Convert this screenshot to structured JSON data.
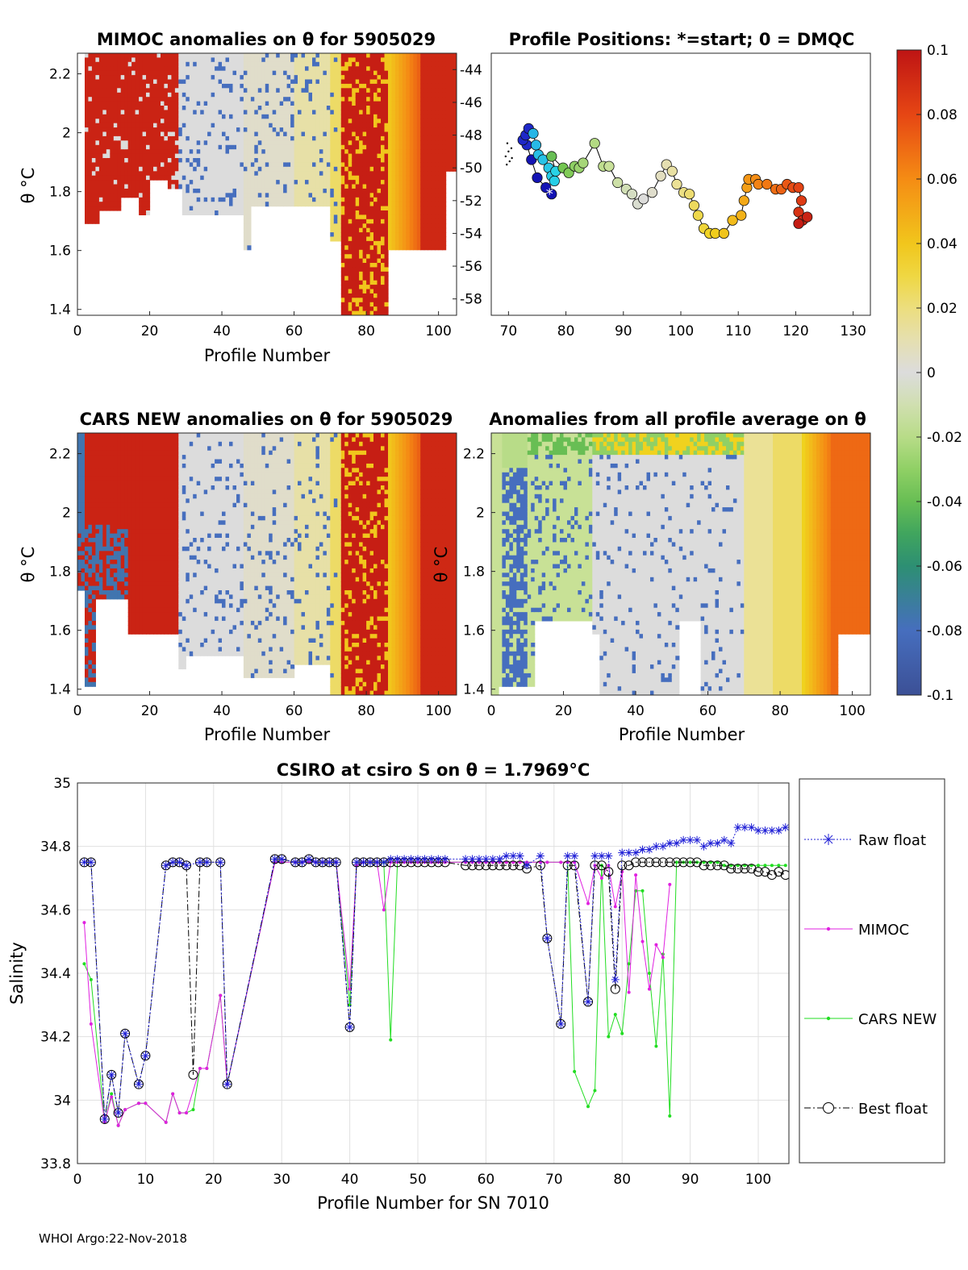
{
  "footer": "WHOI Argo:22-Nov-2018",
  "colors": {
    "raw": "#1f1fd6",
    "mimoc": "#e020e0",
    "cars": "#22dd22",
    "best": "#000000"
  },
  "panels": {
    "mimoc": {
      "title": "MIMOC anomalies on θ  for 5905029",
      "xlabel": "Profile Number",
      "ylabel": "θ °C",
      "xlim": [
        0,
        105
      ],
      "ylim": [
        1.38,
        2.27
      ],
      "xticks": [
        "0",
        "20",
        "40",
        "60",
        "80",
        "100"
      ],
      "yticks": [
        "1.4",
        "1.6",
        "1.8",
        "2",
        "2.2"
      ]
    },
    "positions": {
      "title": "Profile Positions: *=start; 0 = DMQC",
      "xlim": [
        67,
        133
      ],
      "ylim": [
        -59,
        -43
      ],
      "xticks": [
        "70",
        "80",
        "90",
        "100",
        "110",
        "120",
        "130"
      ],
      "yticks": [
        "-44",
        "-46",
        "-48",
        "-50",
        "-52",
        "-54",
        "-56",
        "-58"
      ]
    },
    "cars": {
      "title": "CARS NEW anomalies on θ for 5905029",
      "xlabel": "Profile Number",
      "ylabel": "θ °C",
      "xlim": [
        0,
        105
      ],
      "ylim": [
        1.38,
        2.27
      ],
      "xticks": [
        "0",
        "20",
        "40",
        "60",
        "80",
        "100"
      ],
      "yticks": [
        "1.4",
        "1.6",
        "1.8",
        "2",
        "2.2"
      ]
    },
    "average": {
      "title": "Anomalies from all profile average on θ",
      "xlabel": "Profile Number",
      "ylabel": "θ °C",
      "xlim": [
        0,
        105
      ],
      "ylim": [
        1.38,
        2.27
      ],
      "xticks": [
        "0",
        "20",
        "40",
        "60",
        "80",
        "100"
      ],
      "yticks": [
        "1.4",
        "1.6",
        "1.8",
        "2",
        "2.2"
      ]
    },
    "colorbar": {
      "ticks": [
        "0.1",
        "0.08",
        "0.06",
        "0.04",
        "0.02",
        "0",
        "-0.02",
        "-0.04",
        "-0.06",
        "-0.08",
        "-0.1"
      ],
      "range": [
        -0.1,
        0.1
      ]
    }
  },
  "chart_data": [
    {
      "type": "line",
      "title": "CSIRO at csiro S on θ = 1.7969°C",
      "xlabel": "Profile Number for SN 7010",
      "ylabel": "Salinity",
      "xlim": [
        0,
        104.5
      ],
      "ylim": [
        33.8,
        35
      ],
      "xticks": [
        "0",
        "10",
        "20",
        "30",
        "40",
        "50",
        "60",
        "70",
        "80",
        "90",
        "100"
      ],
      "yticks": [
        "33.8",
        "34",
        "34.2",
        "34.4",
        "34.6",
        "34.8",
        "35"
      ],
      "legend": [
        "Raw float",
        "MIMOC",
        "CARS NEW",
        "Best float"
      ],
      "series": [
        {
          "name": "Raw float",
          "x": [
            1,
            2,
            4,
            5,
            6,
            7,
            9,
            10,
            13,
            14,
            15,
            16,
            18,
            19,
            21,
            22,
            29,
            30,
            32,
            33,
            34,
            35,
            36,
            37,
            38,
            40,
            41,
            42,
            43,
            44,
            45,
            46,
            47,
            48,
            49,
            50,
            51,
            52,
            53,
            54,
            57,
            58,
            59,
            60,
            61,
            62,
            63,
            64,
            65,
            66,
            68,
            69,
            71,
            72,
            73,
            75,
            76,
            77,
            78,
            79,
            80,
            81,
            82,
            83,
            84,
            85,
            86,
            87,
            88,
            89,
            90,
            91,
            92,
            93,
            94,
            95,
            96,
            97,
            98,
            99,
            100,
            101,
            102,
            103,
            104
          ],
          "y": [
            34.75,
            34.75,
            33.94,
            34.08,
            33.96,
            34.21,
            34.05,
            34.14,
            34.74,
            34.75,
            34.75,
            34.74,
            34.75,
            34.75,
            34.75,
            34.05,
            34.76,
            34.76,
            34.75,
            34.75,
            34.76,
            34.75,
            34.75,
            34.75,
            34.75,
            34.23,
            34.75,
            34.75,
            34.75,
            34.75,
            34.75,
            34.76,
            34.76,
            34.76,
            34.76,
            34.76,
            34.76,
            34.76,
            34.76,
            34.76,
            34.76,
            34.76,
            34.76,
            34.76,
            34.76,
            34.76,
            34.77,
            34.77,
            34.77,
            34.74,
            34.77,
            34.51,
            34.24,
            34.77,
            34.77,
            34.31,
            34.77,
            34.77,
            34.77,
            34.38,
            34.78,
            34.78,
            34.78,
            34.79,
            34.79,
            34.8,
            34.8,
            34.81,
            34.81,
            34.82,
            34.82,
            34.82,
            34.8,
            34.81,
            34.81,
            34.82,
            34.81,
            34.86,
            34.86,
            34.86,
            34.85,
            34.85,
            34.85,
            34.85,
            34.86
          ]
        },
        {
          "name": "MIMOC",
          "x": [
            1,
            2,
            4,
            5,
            6,
            7,
            9,
            10,
            13,
            14,
            15,
            16,
            18,
            19,
            21,
            22,
            29,
            30,
            32,
            33,
            34,
            35,
            36,
            37,
            38,
            40,
            41,
            42,
            43,
            44,
            45,
            46,
            47,
            48,
            49,
            50,
            51,
            52,
            53,
            54,
            57,
            58,
            59,
            60,
            61,
            62,
            63,
            64,
            65,
            66,
            68,
            69,
            71,
            72,
            73,
            75,
            76,
            77,
            78,
            79,
            80,
            81,
            82,
            83,
            84,
            85,
            86,
            87
          ],
          "y": [
            34.56,
            34.24,
            33.93,
            34.01,
            33.92,
            33.97,
            33.99,
            33.99,
            33.93,
            34.02,
            33.96,
            33.96,
            34.1,
            34.1,
            34.33,
            34.05,
            34.75,
            34.75,
            34.75,
            34.75,
            34.75,
            34.75,
            34.75,
            34.75,
            34.75,
            34.35,
            34.74,
            34.75,
            34.75,
            34.75,
            34.6,
            34.75,
            34.75,
            34.75,
            34.75,
            34.75,
            34.75,
            34.75,
            34.75,
            34.75,
            34.75,
            34.75,
            34.75,
            34.75,
            34.75,
            34.75,
            34.75,
            34.75,
            34.75,
            34.75,
            34.75,
            34.75,
            34.75,
            34.75,
            34.75,
            34.62,
            34.74,
            34.7,
            34.74,
            34.61,
            34.72,
            34.34,
            34.71,
            34.5,
            34.35,
            34.49,
            34.45,
            34.68
          ]
        },
        {
          "name": "CARS NEW",
          "x": [
            1,
            2,
            4,
            5,
            6,
            7,
            9,
            10,
            13,
            14,
            15,
            16,
            17,
            18,
            19,
            21,
            22,
            29,
            30,
            32,
            33,
            34,
            35,
            36,
            37,
            38,
            40,
            41,
            42,
            43,
            44,
            45,
            46,
            47,
            48,
            49,
            50,
            51,
            52,
            53,
            54,
            57,
            58,
            59,
            60,
            61,
            62,
            63,
            64,
            65,
            66,
            68,
            69,
            71,
            72,
            73,
            75,
            76,
            77,
            78,
            79,
            80,
            81,
            82,
            83,
            84,
            85,
            86,
            87,
            88,
            89,
            90,
            91,
            92,
            93,
            94,
            95,
            96,
            97,
            98,
            99,
            100,
            101,
            102,
            103,
            104
          ],
          "y": [
            34.43,
            34.38,
            33.93,
            34.02,
            33.92,
            33.97,
            33.99,
            33.99,
            33.93,
            34.02,
            33.96,
            33.96,
            33.97,
            34.1,
            34.1,
            34.33,
            34.05,
            34.75,
            34.75,
            34.75,
            34.75,
            34.75,
            34.75,
            34.75,
            34.75,
            34.75,
            34.3,
            34.74,
            34.75,
            34.75,
            34.75,
            34.75,
            34.19,
            34.75,
            34.75,
            34.75,
            34.75,
            34.75,
            34.75,
            34.75,
            34.75,
            34.75,
            34.75,
            34.75,
            34.75,
            34.75,
            34.75,
            34.75,
            34.75,
            34.75,
            34.75,
            34.75,
            34.75,
            34.75,
            34.75,
            34.09,
            33.98,
            34.03,
            34.74,
            34.2,
            34.27,
            34.21,
            34.43,
            34.66,
            34.66,
            34.4,
            34.17,
            34.46,
            33.95,
            34.75,
            34.75,
            34.75,
            34.75,
            34.75,
            34.75,
            34.75,
            34.74,
            34.74,
            34.74,
            34.74,
            34.74,
            34.74,
            34.74,
            34.74,
            34.74,
            34.74
          ]
        },
        {
          "name": "Best float",
          "x": [
            1,
            2,
            4,
            5,
            6,
            7,
            9,
            10,
            13,
            14,
            15,
            16,
            17,
            18,
            19,
            21,
            22,
            29,
            30,
            32,
            33,
            34,
            35,
            36,
            37,
            38,
            40,
            41,
            42,
            43,
            44,
            45,
            46,
            47,
            48,
            49,
            50,
            51,
            52,
            53,
            54,
            57,
            58,
            59,
            60,
            61,
            62,
            63,
            64,
            65,
            66,
            68,
            69,
            71,
            72,
            73,
            75,
            76,
            77,
            78,
            79,
            80,
            81,
            82,
            83,
            84,
            85,
            86,
            87,
            88,
            89,
            90,
            91,
            92,
            93,
            94,
            95,
            96,
            97,
            98,
            99,
            100,
            101,
            102,
            103,
            104
          ],
          "y": [
            34.75,
            34.75,
            33.94,
            34.08,
            33.96,
            34.21,
            34.05,
            34.14,
            34.74,
            34.75,
            34.75,
            34.74,
            34.08,
            34.75,
            34.75,
            34.75,
            34.05,
            34.76,
            34.76,
            34.75,
            34.75,
            34.76,
            34.75,
            34.75,
            34.75,
            34.75,
            34.23,
            34.75,
            34.75,
            34.75,
            34.75,
            34.75,
            34.75,
            34.75,
            34.75,
            34.75,
            34.75,
            34.75,
            34.75,
            34.75,
            34.75,
            34.74,
            34.74,
            34.74,
            34.74,
            34.74,
            34.74,
            34.74,
            34.74,
            34.74,
            34.73,
            34.74,
            34.51,
            34.24,
            34.74,
            34.74,
            34.31,
            34.74,
            34.74,
            34.72,
            34.35,
            34.74,
            34.74,
            34.75,
            34.75,
            34.75,
            34.75,
            34.75,
            34.75,
            34.75,
            34.75,
            34.75,
            34.75,
            34.74,
            34.74,
            34.74,
            34.74,
            34.73,
            34.73,
            34.73,
            34.73,
            34.72,
            34.72,
            34.71,
            34.72,
            34.71
          ]
        }
      ]
    }
  ]
}
